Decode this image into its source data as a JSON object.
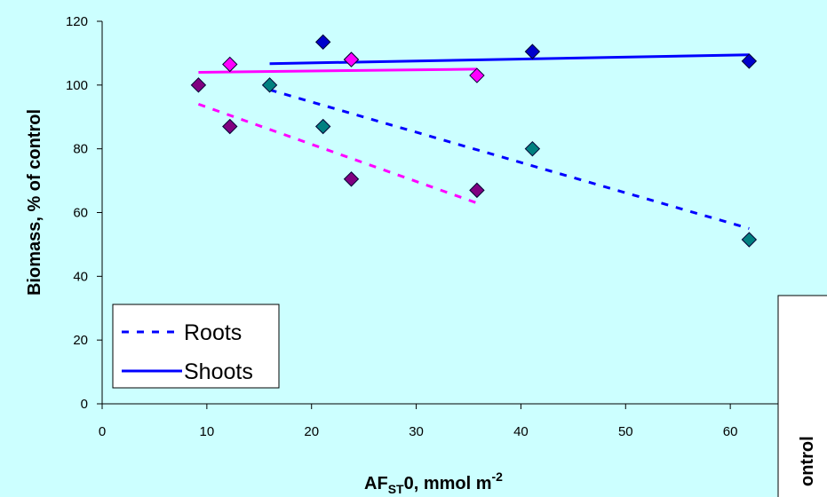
{
  "chart_data": {
    "type": "scatter",
    "xlabel": {
      "main": "AF",
      "sub": "ST",
      "rest": "0, mmol m",
      "sup": "-2"
    },
    "ylabel": "Biomass, % of control",
    "xlim": [
      0,
      70
    ],
    "ylim": [
      0,
      120
    ],
    "x_ticks": [
      0,
      10,
      20,
      30,
      40,
      50,
      60
    ],
    "y_ticks": [
      0,
      20,
      40,
      60,
      80,
      100,
      120
    ],
    "grid": false,
    "legend_placement": "bottom-left",
    "legend": [
      {
        "label": "Roots",
        "style": "dashed",
        "color": "#0000ff"
      },
      {
        "label": "Shoots",
        "style": "solid",
        "color": "#0000ff"
      }
    ],
    "series": [
      {
        "marker": "diamond",
        "color": "#0000cc",
        "points": [
          [
            21.1,
            113.5
          ],
          [
            23.8,
            108
          ],
          [
            41.1,
            110.5
          ],
          [
            61.8,
            107.5
          ]
        ]
      },
      {
        "marker": "diamond",
        "color": "#ff00ff",
        "points": [
          [
            12.2,
            106.5
          ],
          [
            23.8,
            108
          ],
          [
            35.8,
            103
          ]
        ]
      },
      {
        "marker": "diamond",
        "color": "#800080",
        "points": [
          [
            9.2,
            100
          ],
          [
            12.2,
            87
          ],
          [
            23.8,
            70.5
          ],
          [
            35.8,
            67
          ]
        ]
      },
      {
        "marker": "diamond",
        "color": "#008080",
        "points": [
          [
            16,
            100
          ],
          [
            21.1,
            87
          ],
          [
            41.1,
            80
          ],
          [
            61.8,
            51.5
          ]
        ]
      }
    ],
    "trendlines": [
      {
        "style": "solid",
        "color": "#0000ff",
        "from": [
          16,
          106.7
        ],
        "to": [
          61.8,
          109.5
        ]
      },
      {
        "style": "solid",
        "color": "#ff00ff",
        "from": [
          9.2,
          104
        ],
        "to": [
          35.8,
          105
        ]
      },
      {
        "style": "dashed",
        "color": "#ff00ff",
        "from": [
          9.2,
          94
        ],
        "to": [
          35.8,
          63
        ]
      },
      {
        "style": "dashed",
        "color": "#0000ff",
        "from": [
          16,
          98.5
        ],
        "to": [
          61.8,
          55
        ]
      }
    ]
  },
  "partial_chart": {
    "ylabel_fragment": "ontrol"
  }
}
